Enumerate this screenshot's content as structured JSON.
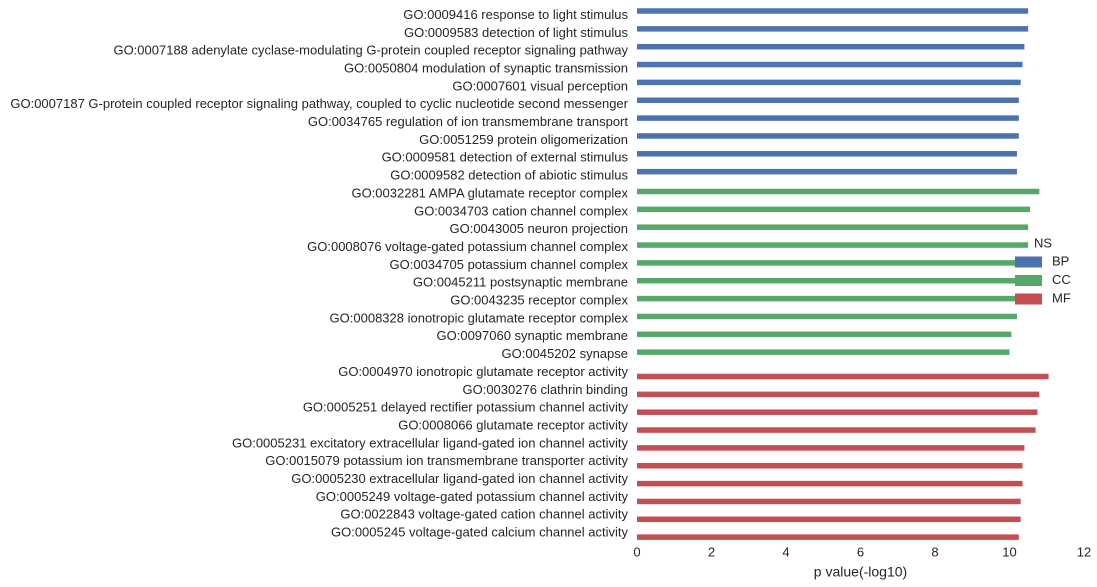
{
  "chart_data": {
    "type": "bar",
    "orientation": "horizontal",
    "xlabel": "p value(-log10)",
    "xlim": [
      0,
      12
    ],
    "xticks": [
      0,
      2,
      4,
      6,
      8,
      10,
      12
    ],
    "grid": false,
    "legend": {
      "title": "NS",
      "placement": "right",
      "entries": [
        {
          "name": "BP",
          "color": "#4c72b0"
        },
        {
          "name": "CC",
          "color": "#55a868"
        },
        {
          "name": "MF",
          "color": "#c44e52"
        }
      ]
    },
    "groups": [
      {
        "name": "BP",
        "color": "#4c72b0",
        "categories": [
          "GO:0009416 response to light stimulus",
          "GO:0009583 detection of light stimulus",
          "GO:0007188 adenylate cyclase-modulating G-protein coupled receptor signaling pathway",
          "GO:0050804 modulation of synaptic transmission",
          "GO:0007601 visual perception",
          "GO:0007187 G-protein coupled receptor signaling pathway, coupled to cyclic nucleotide second messenger",
          "GO:0034765 regulation of ion transmembrane transport",
          "GO:0051259 protein oligomerization",
          "GO:0009581 detection of external stimulus",
          "GO:0009582 detection of abiotic stimulus"
        ],
        "values": [
          10.5,
          10.5,
          10.4,
          10.35,
          10.3,
          10.25,
          10.25,
          10.25,
          10.2,
          10.2
        ]
      },
      {
        "name": "CC",
        "color": "#55a868",
        "categories": [
          "GO:0032281 AMPA glutamate receptor complex",
          "GO:0034703 cation channel complex",
          "GO:0043005 neuron projection",
          "GO:0008076 voltage-gated potassium channel complex",
          "GO:0034705 potassium channel complex",
          "GO:0045211 postsynaptic membrane",
          "GO:0043235 receptor complex",
          "GO:0008328 ionotropic glutamate receptor complex",
          "GO:0097060 synaptic membrane",
          "GO:0045202 synapse"
        ],
        "values": [
          10.8,
          10.55,
          10.5,
          10.5,
          10.4,
          10.2,
          10.2,
          10.2,
          10.05,
          10.0
        ]
      },
      {
        "name": "MF",
        "color": "#c44e52",
        "categories": [
          "GO:0004970 ionotropic glutamate receptor activity",
          "GO:0030276 clathrin binding",
          "GO:0005251 delayed rectifier potassium channel activity",
          "GO:0008066 glutamate receptor activity",
          "GO:0005231 excitatory extracellular ligand-gated ion channel activity",
          "GO:0015079 potassium ion transmembrane transporter activity",
          "GO:0005230 extracellular ligand-gated ion channel activity",
          "GO:0005249 voltage-gated potassium channel activity",
          "GO:0022843 voltage-gated cation channel activity",
          "GO:0005245 voltage-gated calcium channel activity"
        ],
        "values": [
          11.05,
          10.8,
          10.75,
          10.7,
          10.4,
          10.35,
          10.35,
          10.3,
          10.3,
          10.25
        ]
      }
    ]
  }
}
